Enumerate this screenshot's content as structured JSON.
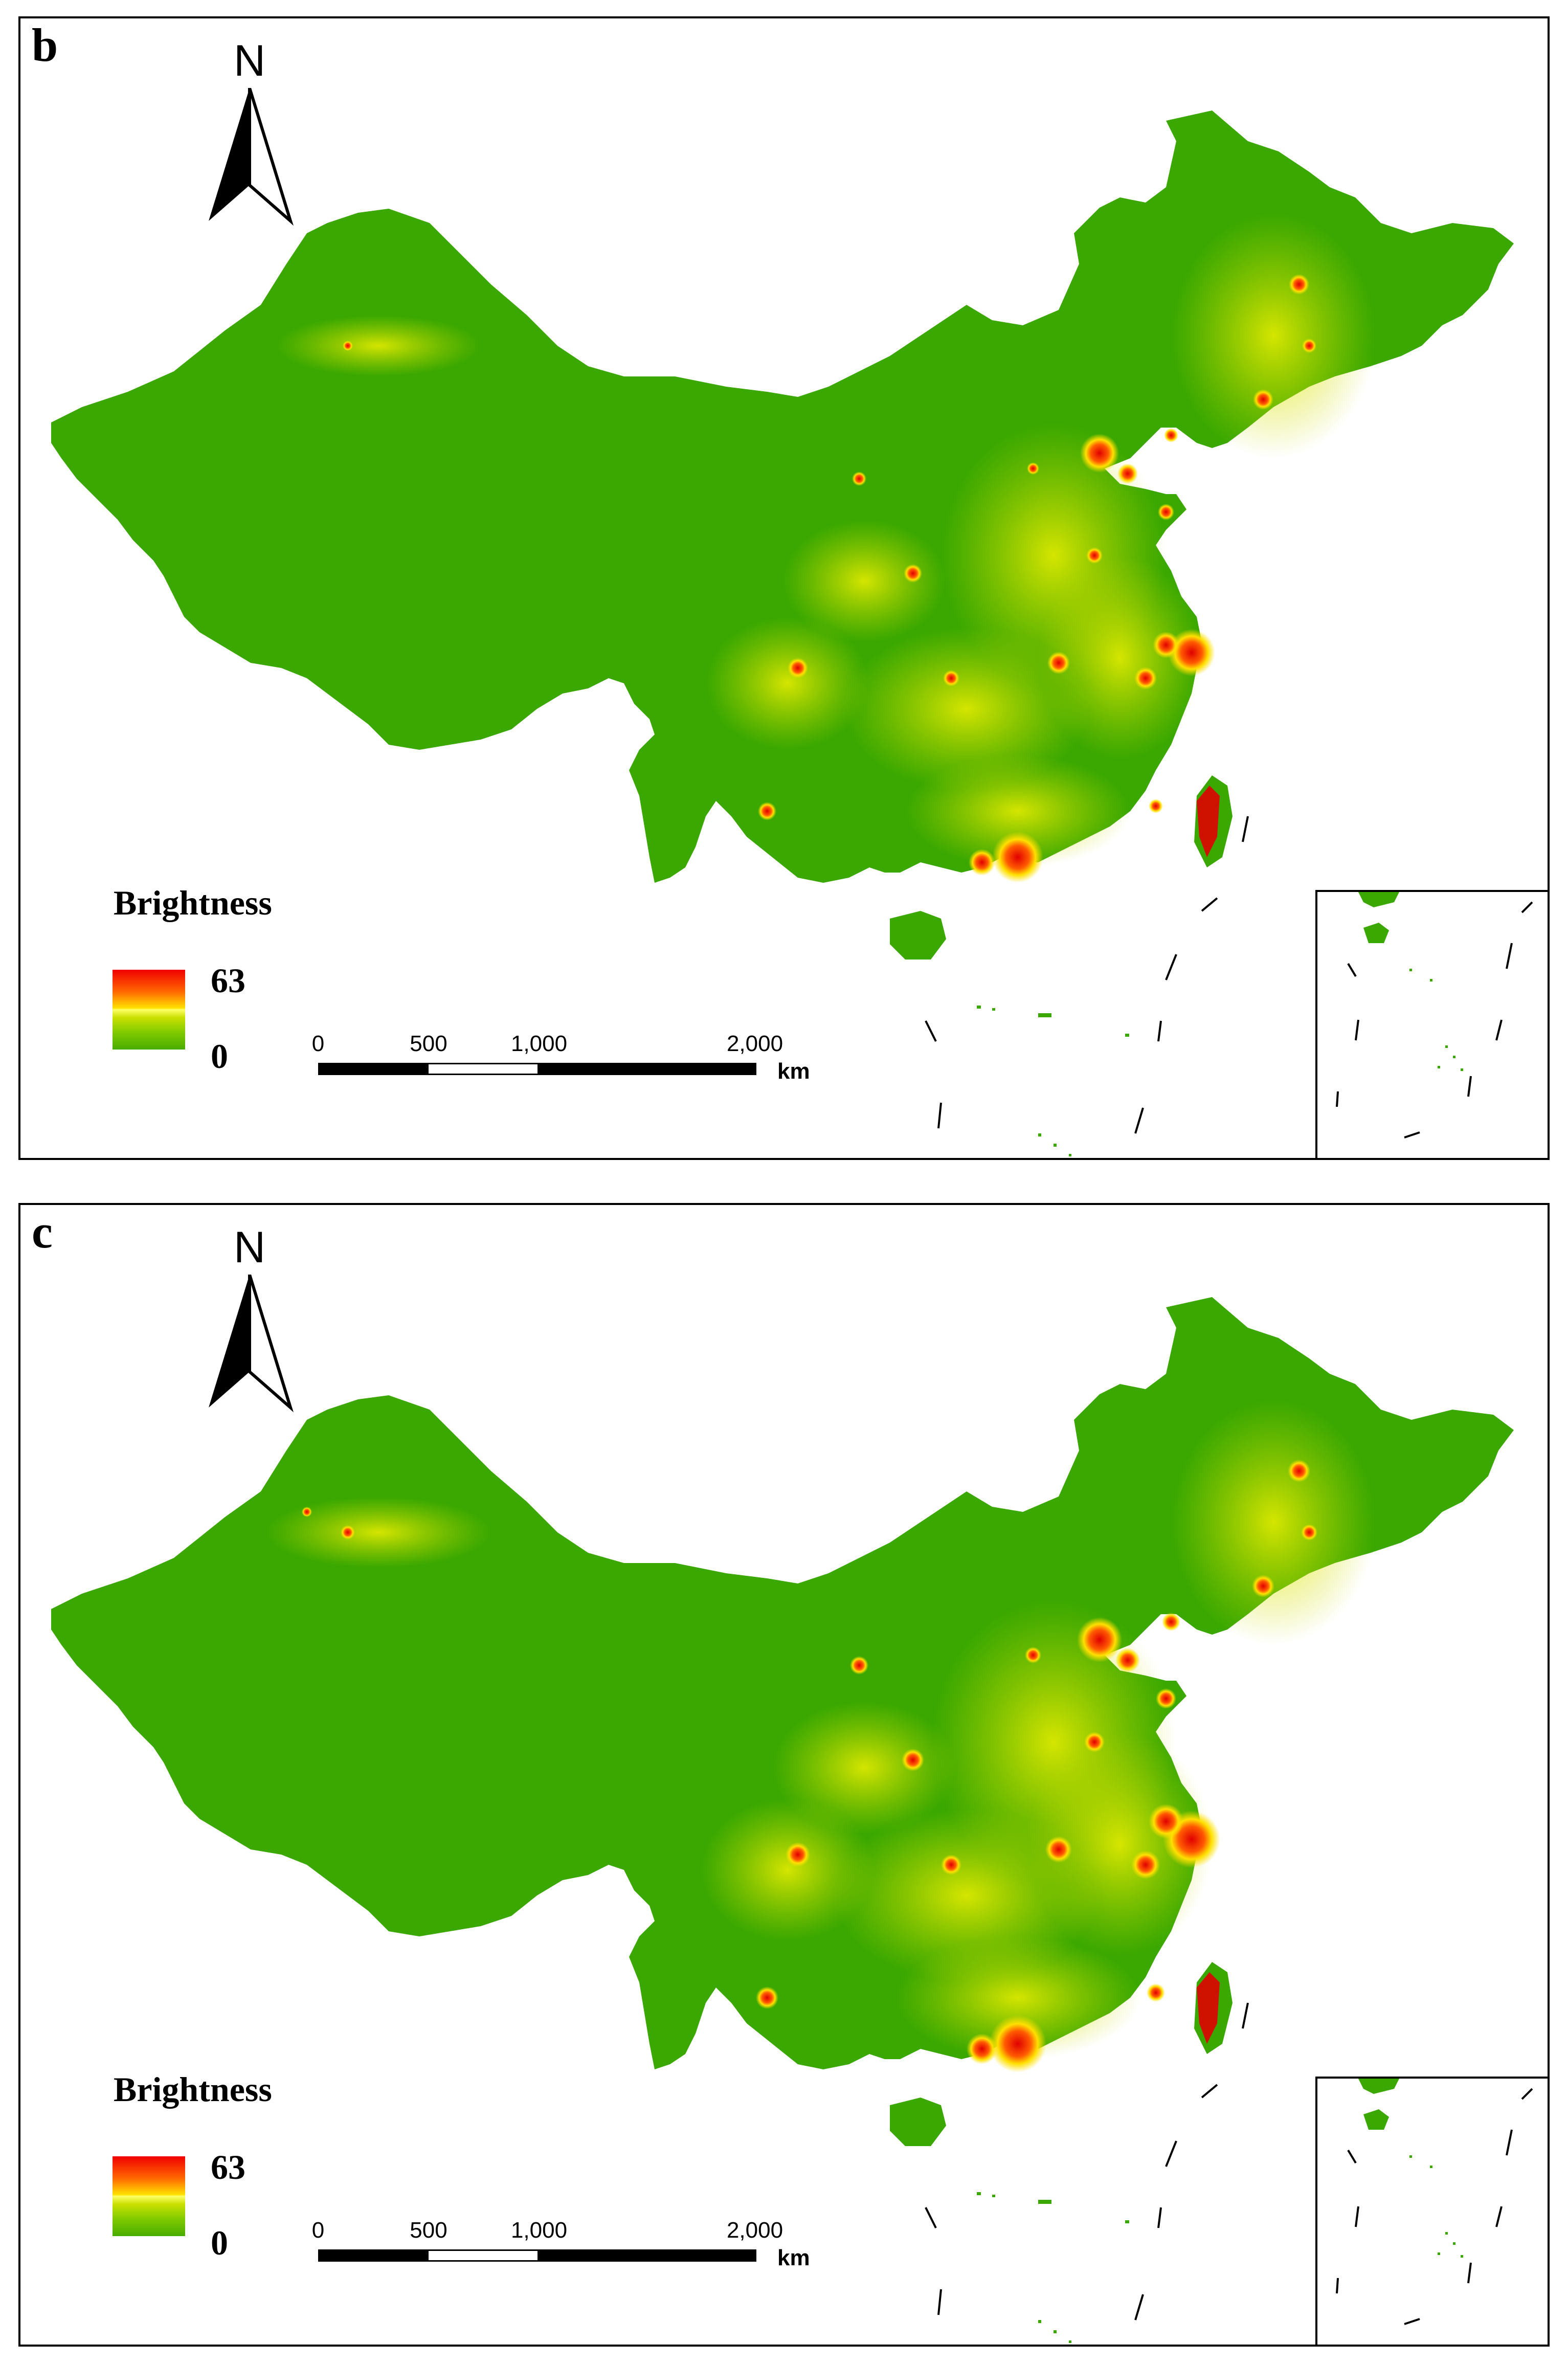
{
  "colors": {
    "land_dark": "#3aa800",
    "dim_light": "#c8d800",
    "mid_light": "#ffee00",
    "bright_light": "#e00000",
    "frame": "#000000",
    "sea": "#ffffff"
  },
  "north_arrow": {
    "letter": "N"
  },
  "scale_bar": {
    "ticks": [
      "0",
      "500",
      "1,000",
      "2,000"
    ],
    "unit": "km"
  },
  "panels": [
    {
      "label": "b",
      "legend": {
        "title": "Brightness",
        "max": "63",
        "min": "0"
      }
    },
    {
      "label": "c",
      "legend": {
        "title": "Brightness",
        "max": "63",
        "min": "0"
      }
    }
  ]
}
